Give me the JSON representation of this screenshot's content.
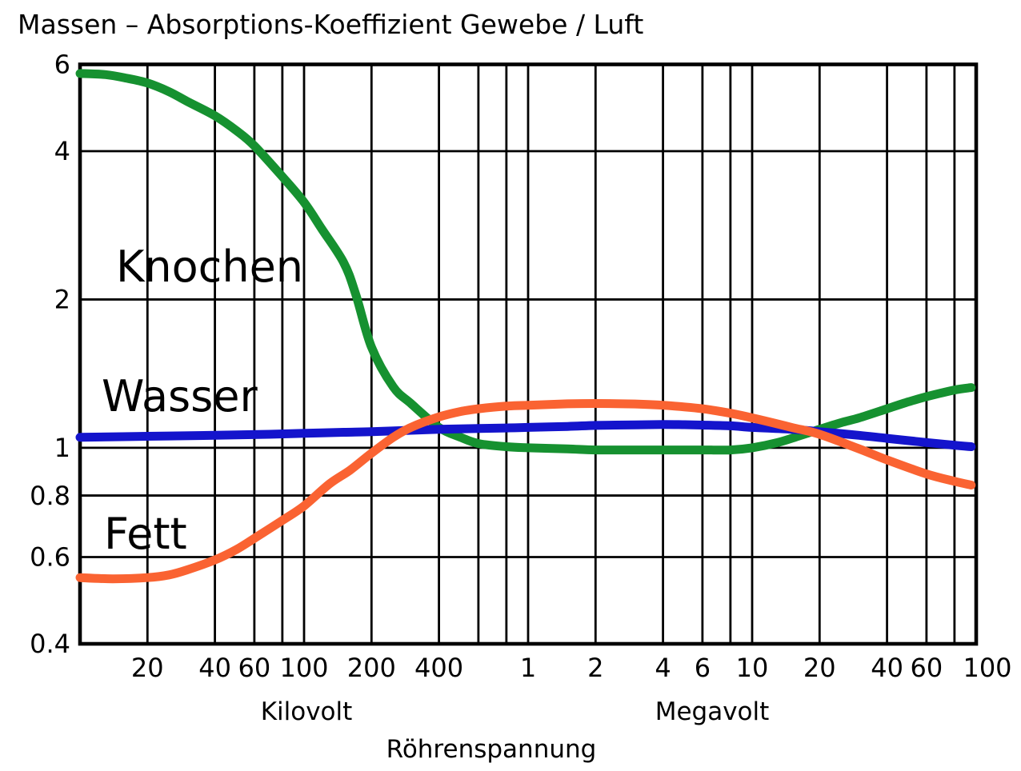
{
  "title": "Massen – Absorptions-Koeffizient Gewebe / Luft",
  "chart_data": {
    "type": "line",
    "title": "Massen – Absorptions-Koeffizient Gewebe / Luft",
    "x_scale": "log",
    "y_scale": "log",
    "x_axis_label": "Röhrenspannung",
    "x_unit_groups": [
      {
        "id": "kilovolt",
        "label": "Kilovolt"
      },
      {
        "id": "megavolt",
        "label": "Megavolt"
      }
    ],
    "x_range_kilovolt": [
      10,
      100000
    ],
    "y_range": [
      0.4,
      6
    ],
    "grid": true,
    "axis_color": "#000000",
    "x_ticks_kilovolt": [
      {
        "kv": 20,
        "label": "20"
      },
      {
        "kv": 40,
        "label": "40"
      },
      {
        "kv": 60,
        "label": "60"
      },
      {
        "kv": 100,
        "label": "100"
      },
      {
        "kv": 200,
        "label": "200"
      },
      {
        "kv": 400,
        "label": "400"
      }
    ],
    "x_ticks_megavolt": [
      {
        "kv": 1000,
        "label": "1"
      },
      {
        "kv": 2000,
        "label": "2"
      },
      {
        "kv": 4000,
        "label": "4"
      },
      {
        "kv": 6000,
        "label": "6"
      },
      {
        "kv": 10000,
        "label": "10"
      },
      {
        "kv": 20000,
        "label": "20"
      },
      {
        "kv": 40000,
        "label": "40"
      },
      {
        "kv": 60000,
        "label": "60"
      },
      {
        "kv": 100000,
        "label": "100"
      }
    ],
    "x_gridlines_kv": [
      20,
      40,
      60,
      80,
      100,
      200,
      400,
      600,
      800,
      1000,
      2000,
      4000,
      6000,
      8000,
      10000,
      20000,
      40000,
      60000,
      80000
    ],
    "y_ticks": [
      {
        "v": 6,
        "label": "6"
      },
      {
        "v": 4,
        "label": "4"
      },
      {
        "v": 2,
        "label": "2"
      },
      {
        "v": 1,
        "label": "1"
      },
      {
        "v": 0.8,
        "label": "0.8"
      },
      {
        "v": 0.6,
        "label": "0.6"
      },
      {
        "v": 0.4,
        "label": "0.4"
      }
    ],
    "y_gridlines": [
      4,
      2,
      1,
      0.8,
      0.6
    ],
    "series": [
      {
        "name": "Knochen",
        "color": "#169130",
        "points": [
          [
            10,
            5.75
          ],
          [
            13,
            5.72
          ],
          [
            16,
            5.63
          ],
          [
            20,
            5.5
          ],
          [
            25,
            5.28
          ],
          [
            30,
            5.05
          ],
          [
            40,
            4.72
          ],
          [
            50,
            4.4
          ],
          [
            60,
            4.1
          ],
          [
            80,
            3.55
          ],
          [
            100,
            3.15
          ],
          [
            120,
            2.78
          ],
          [
            150,
            2.38
          ],
          [
            170,
            2.05
          ],
          [
            200,
            1.6
          ],
          [
            250,
            1.33
          ],
          [
            300,
            1.23
          ],
          [
            400,
            1.1
          ],
          [
            500,
            1.05
          ],
          [
            600,
            1.02
          ],
          [
            800,
            1.005
          ],
          [
            1000,
            1.0
          ],
          [
            1500,
            0.995
          ],
          [
            2000,
            0.99
          ],
          [
            3000,
            0.99
          ],
          [
            4000,
            0.99
          ],
          [
            6000,
            0.99
          ],
          [
            8000,
            0.99
          ],
          [
            10000,
            1.0
          ],
          [
            13000,
            1.025
          ],
          [
            16000,
            1.055
          ],
          [
            20000,
            1.09
          ],
          [
            25000,
            1.125
          ],
          [
            30000,
            1.15
          ],
          [
            40000,
            1.2
          ],
          [
            50000,
            1.24
          ],
          [
            60000,
            1.27
          ],
          [
            80000,
            1.31
          ],
          [
            95000,
            1.325
          ]
        ]
      },
      {
        "name": "Wasser",
        "color": "#1414cc",
        "points": [
          [
            10,
            1.05
          ],
          [
            20,
            1.055
          ],
          [
            40,
            1.06
          ],
          [
            70,
            1.065
          ],
          [
            100,
            1.07
          ],
          [
            150,
            1.075
          ],
          [
            200,
            1.078
          ],
          [
            300,
            1.085
          ],
          [
            400,
            1.09
          ],
          [
            600,
            1.094
          ],
          [
            800,
            1.097
          ],
          [
            1000,
            1.1
          ],
          [
            1500,
            1.105
          ],
          [
            2000,
            1.11
          ],
          [
            3000,
            1.113
          ],
          [
            4000,
            1.115
          ],
          [
            5000,
            1.114
          ],
          [
            6000,
            1.112
          ],
          [
            8000,
            1.108
          ],
          [
            10000,
            1.1
          ],
          [
            15000,
            1.09
          ],
          [
            20000,
            1.078
          ],
          [
            30000,
            1.06
          ],
          [
            40000,
            1.045
          ],
          [
            60000,
            1.025
          ],
          [
            80000,
            1.012
          ],
          [
            95000,
            1.005
          ]
        ]
      },
      {
        "name": "Fett",
        "color": "#fa6332",
        "points": [
          [
            10,
            0.545
          ],
          [
            14,
            0.542
          ],
          [
            20,
            0.545
          ],
          [
            25,
            0.552
          ],
          [
            30,
            0.565
          ],
          [
            40,
            0.592
          ],
          [
            50,
            0.622
          ],
          [
            60,
            0.655
          ],
          [
            80,
            0.712
          ],
          [
            100,
            0.762
          ],
          [
            130,
            0.845
          ],
          [
            160,
            0.9
          ],
          [
            200,
            0.975
          ],
          [
            250,
            1.05
          ],
          [
            300,
            1.1
          ],
          [
            400,
            1.155
          ],
          [
            500,
            1.185
          ],
          [
            600,
            1.2
          ],
          [
            800,
            1.215
          ],
          [
            1000,
            1.22
          ],
          [
            1500,
            1.228
          ],
          [
            2000,
            1.23
          ],
          [
            3000,
            1.227
          ],
          [
            4000,
            1.22
          ],
          [
            6000,
            1.2
          ],
          [
            8000,
            1.175
          ],
          [
            10000,
            1.15
          ],
          [
            15000,
            1.1
          ],
          [
            20000,
            1.065
          ],
          [
            30000,
            0.995
          ],
          [
            40000,
            0.945
          ],
          [
            60000,
            0.885
          ],
          [
            80000,
            0.855
          ],
          [
            95000,
            0.84
          ]
        ]
      }
    ]
  }
}
